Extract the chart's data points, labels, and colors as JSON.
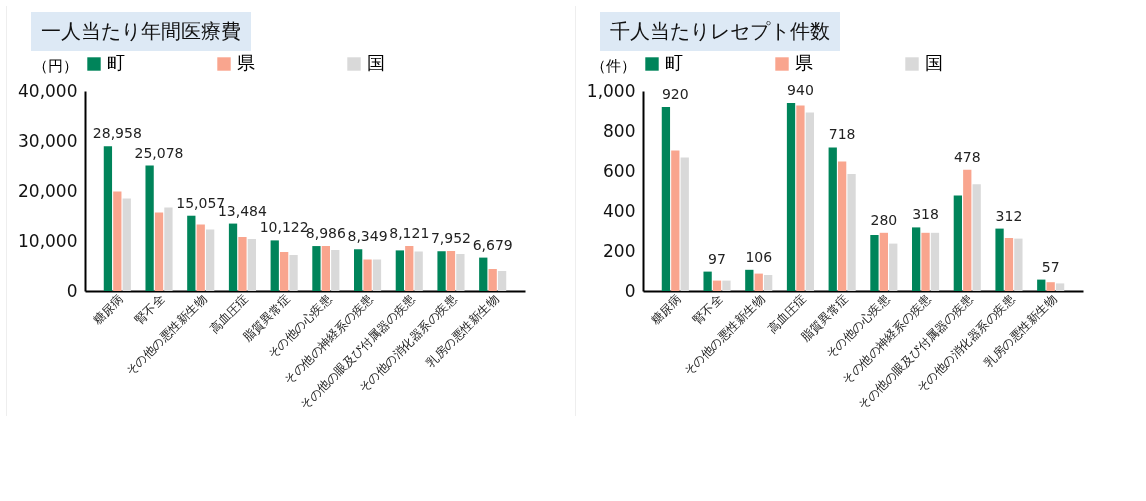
{
  "chart_data": [
    {
      "type": "bar",
      "title": "一人当たり年間医療費",
      "ylabel": "（円）",
      "legend": "top",
      "grid": false,
      "categories": [
        "糖尿病",
        "腎不全",
        "その他の悪性新生物",
        "高血圧症",
        "脂質異常症",
        "その他の心疾患",
        "その他の神経系の疾患",
        "その他の眼及び付属器の疾患",
        "その他の消化器系の疾患",
        "乳房の悪性新生物"
      ],
      "ylim": [
        0,
        40000
      ],
      "yticks": [
        0,
        {
          "value": 10000,
          "label": "10,000"
        },
        {
          "value": 20000,
          "label": "20,000"
        },
        {
          "value": 30000,
          "label": "30,000"
        },
        {
          "value": 40000,
          "label": "40,000"
        }
      ],
      "series": [
        {
          "name": "町",
          "color": "#00845a",
          "values": [
            28958,
            25078,
            15057,
            13484,
            10122,
            8986,
            8349,
            8121,
            7952,
            6679
          ],
          "value_labels": [
            "28,958",
            "25,078",
            "15,057",
            "13,484",
            "10,122",
            "8,986",
            "8,349",
            "8,121",
            "7,952",
            "6,679"
          ]
        },
        {
          "name": "県",
          "color": "#f9a58e",
          "values": [
            19900,
            15700,
            13300,
            10800,
            7800,
            9000,
            6300,
            9000,
            8000,
            4400
          ]
        },
        {
          "name": "国",
          "color": "#d9d9d9",
          "values": [
            18500,
            16700,
            12300,
            10400,
            7200,
            8200,
            6300,
            7900,
            7400,
            4000
          ]
        }
      ]
    },
    {
      "type": "bar",
      "title": "千人当たりレセプト件数",
      "ylabel": "（件）",
      "legend": "top",
      "grid": false,
      "categories": [
        "糖尿病",
        "腎不全",
        "その他の悪性新生物",
        "高血圧症",
        "脂質異常症",
        "その他の心疾患",
        "その他の神経系の疾患",
        "その他の眼及び付属器の疾患",
        "その他の消化器系の疾患",
        "乳房の悪性新生物"
      ],
      "ylim": [
        0,
        1000
      ],
      "yticks": [
        0,
        200,
        400,
        600,
        800,
        {
          "value": 1000,
          "label": "1,000"
        }
      ],
      "series": [
        {
          "name": "町",
          "color": "#00845a",
          "values": [
            920,
            97,
            106,
            940,
            718,
            280,
            318,
            478,
            312,
            57
          ],
          "value_labels": [
            "920",
            "97",
            "106",
            "940",
            "718",
            "280",
            "318",
            "478",
            "312",
            "57"
          ]
        },
        {
          "name": "県",
          "color": "#f9a58e",
          "values": [
            703,
            52,
            87,
            927,
            647,
            291,
            291,
            606,
            265,
            44
          ]
        },
        {
          "name": "国",
          "color": "#d9d9d9",
          "values": [
            668,
            52,
            80,
            892,
            585,
            237,
            291,
            534,
            262,
            38
          ]
        }
      ]
    }
  ]
}
